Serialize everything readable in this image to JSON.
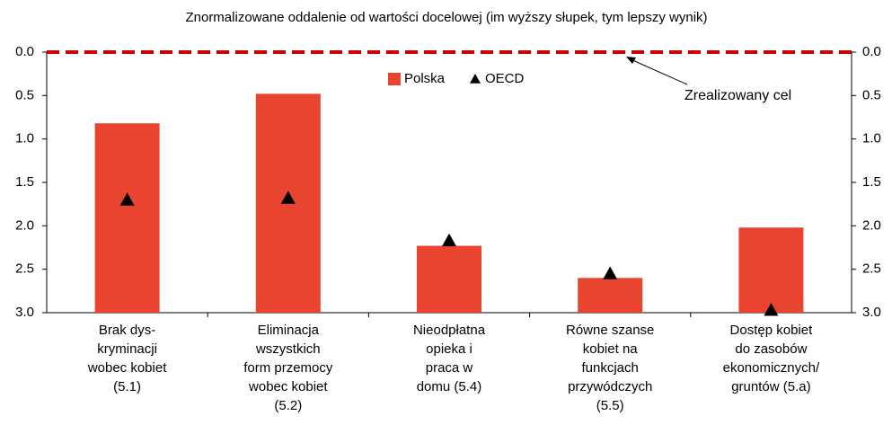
{
  "chart_data": {
    "type": "bar",
    "title": "Znormalizowane oddalenie od wartości docelowej (im wyższy słupek, tym lepszy wynik)",
    "categories": [
      [
        "Brak dys-",
        "kryminacji",
        "wobec kobiet",
        "(5.1)"
      ],
      [
        "Eliminacja",
        "wszystkich",
        "form przemocy",
        "wobec kobiet",
        "(5.2)"
      ],
      [
        "Nieodpłatna",
        "opieka i",
        "praca w",
        "domu (5.4)"
      ],
      [
        "Równe szanse",
        "kobiet na",
        "funkcjach",
        "przywódczych",
        "(5.5)"
      ],
      [
        "Dostęp kobiet",
        "do zasobów",
        "ekonomicznych/",
        "gruntów (5.a)"
      ]
    ],
    "series": [
      {
        "name": "Polska",
        "color": "#e8442f",
        "values": [
          0.82,
          0.48,
          2.23,
          2.6,
          2.02
        ]
      },
      {
        "name": "OECD",
        "color": "#000000",
        "marker": "triangle",
        "values": [
          1.7,
          1.68,
          2.17,
          2.55,
          2.97
        ]
      }
    ],
    "target": 0,
    "target_color": "#cc0000",
    "annotation": "Zrealizowany cel",
    "ylim": [
      0,
      3
    ],
    "y_inverted": true,
    "yticks": [
      {
        "value": 0,
        "label": "0.0"
      },
      0.5,
      {
        "value": 1,
        "label": "1.0"
      },
      1.5,
      {
        "value": 2,
        "label": "2.0"
      },
      2.5,
      {
        "value": 3,
        "label": "3.0"
      }
    ],
    "y2lim": [
      0,
      3
    ],
    "y2ticks": [
      {
        "value": 0,
        "label": "0.0"
      },
      0.5,
      {
        "value": 1,
        "label": "1.0"
      },
      1.5,
      {
        "value": 2,
        "label": "2.0"
      },
      2.5,
      {
        "value": 3,
        "label": "3.0"
      }
    ],
    "grid": false,
    "legend": "top"
  }
}
